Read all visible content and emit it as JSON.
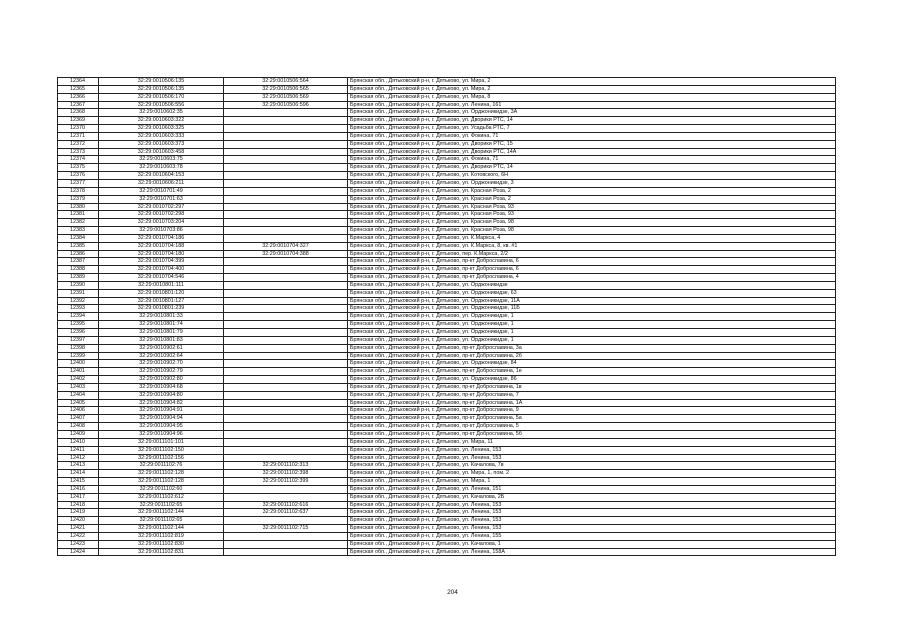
{
  "page_number": "204",
  "rows": [
    {
      "n": "12364",
      "k1": "32:29:0010506:135",
      "k2": "32:29:0010506:564",
      "addr": "Брянская обл., Дятьковский р-н, г. Дятьково, ул. Мира, 2"
    },
    {
      "n": "12365",
      "k1": "32:29:0010506:135",
      "k2": "32:29:0010506:565",
      "addr": "Брянская обл., Дятьковский р-н, г. Дятьково, ул. Мира, 2"
    },
    {
      "n": "12366",
      "k1": "32:29:0010506:170",
      "k2": "32:29:0010506:569",
      "addr": "Брянская обл., Дятьковский р-н, г. Дятьково, ул. Мира, 8"
    },
    {
      "n": "12367",
      "k1": "32:29:0010506:556",
      "k2": "32:29:0010506:596",
      "addr": "Брянская обл., Дятьковский р-н, г. Дятьково, ул. Ленина, 161"
    },
    {
      "n": "12368",
      "k1": "32:29:0010602:35",
      "k2": "",
      "addr": "Брянская обл., Дятьковский р-н, г. Дятьково, ул. Орджоникидзе, 3А"
    },
    {
      "n": "12369",
      "k1": "32:29:0010603:322",
      "k2": "",
      "addr": "Брянская обл., Дятьковский р-н, г. Дятьково, ул. Дворики РТС, 14"
    },
    {
      "n": "12370",
      "k1": "32:29:0010603:325",
      "k2": "",
      "addr": "Брянская обл., Дятьковский р-н, г. Дятьково, ул. Усадьба РТС, 7"
    },
    {
      "n": "12371",
      "k1": "32:29:0010603:333",
      "k2": "",
      "addr": "Брянская обл., Дятьковский р-н, г. Дятьково, ул. Фокина, 71"
    },
    {
      "n": "12372",
      "k1": "32:29:0010603:373",
      "k2": "",
      "addr": "Брянская обл., Дятьковский р-н, г. Дятьково, ул. Дворики РТС, 15"
    },
    {
      "n": "12373",
      "k1": "32:29:0010603:458",
      "k2": "",
      "addr": "Брянская обл., Дятьковский р-н, г. Дятьково, ул. Дворики РТС, 14А"
    },
    {
      "n": "12374",
      "k1": "32:29:0010603:75",
      "k2": "",
      "addr": "Брянская обл., Дятьковский р-н, г. Дятьково, ул. Фокина, 71"
    },
    {
      "n": "12375",
      "k1": "32:29:0010603:78",
      "k2": "",
      "addr": "Брянская обл., Дятьковский р-н, г. Дятьково, ул. Дворики РТС, 14"
    },
    {
      "n": "12376",
      "k1": "32:29:0010604:153",
      "k2": "",
      "addr": "Брянская обл., Дятьковский р-н, г. Дятьково, ул. Котовского, 6Н"
    },
    {
      "n": "12377",
      "k1": "32:29:0010606:211",
      "k2": "",
      "addr": "Брянская обл., Дятьковский р-н, г. Дятьково, ул. Орджоникидзе, 3"
    },
    {
      "n": "12378",
      "k1": "32:29:0010701:49",
      "k2": "",
      "addr": "Брянская обл., Дятьковский р-н, г. Дятьково, ул. Красная Роза, 2"
    },
    {
      "n": "12379",
      "k1": "32:29:0010701:63",
      "k2": "",
      "addr": "Брянская обл., Дятьковский р-н, г. Дятьково, ул. Красная Роза, 2"
    },
    {
      "n": "12380",
      "k1": "32:29:0010702:297",
      "k2": "",
      "addr": "Брянская обл., Дятьковский р-н, г. Дятьково, ул. Красная Роза, 93"
    },
    {
      "n": "12381",
      "k1": "32:29:0010702:298",
      "k2": "",
      "addr": "Брянская обл., Дятьковский р-н, г. Дятьково, ул. Красная Роза, 93"
    },
    {
      "n": "12382",
      "k1": "32:29:0010703:204",
      "k2": "",
      "addr": "Брянская обл., Дятьковский р-н, г. Дятьково, ул. Красная Роза, 98"
    },
    {
      "n": "12383",
      "k1": "32:29:0010703:86",
      "k2": "",
      "addr": "Брянская обл., Дятьковский р-н, г. Дятьково, ул. Красная Роза, 98"
    },
    {
      "n": "12384",
      "k1": "32:29:0010704:186",
      "k2": "",
      "addr": "Брянская обл., Дятьковский р-н, г. Дятьково, ул. К.Маркса, 4"
    },
    {
      "n": "12385",
      "k1": "32:29:0010704:188",
      "k2": "32:29:0010704:327",
      "addr": "Брянская обл., Дятьковский р-н, г. Дятьково, ул. К.Маркса, 8, кв. #1"
    },
    {
      "n": "12386",
      "k1": "32:29:0010704:180",
      "k2": "32:29:0010704:388",
      "addr": "Брянская обл., Дятьковский р-н, г. Дятьково, пер. К.Маркса, 2/2"
    },
    {
      "n": "12387",
      "k1": "32:29:0010704:399",
      "k2": "",
      "addr": "Брянская обл., Дятьковский р-н, г. Дятьково, пр-кт Доброславина, 6"
    },
    {
      "n": "12388",
      "k1": "32:29:0010704:400",
      "k2": "",
      "addr": "Брянская обл., Дятьковский р-н, г. Дятьково, пр-кт Доброславина, 6"
    },
    {
      "n": "12389",
      "k1": "32:29:0010704:546",
      "k2": "",
      "addr": "Брянская обл., Дятьковский р-н, г. Дятьково, пр-кт Доброславина, 4"
    },
    {
      "n": "12390",
      "k1": "32:29:0010801:111",
      "k2": "",
      "addr": "Брянская обл., Дятьковский р-н, г. Дятьково, ул. Орджоникидзе"
    },
    {
      "n": "12391",
      "k1": "32:29:0010801:120",
      "k2": "",
      "addr": "Брянская обл., Дятьковский р-н, г. Дятьково, ул. Орджоникидзе, 63"
    },
    {
      "n": "12392",
      "k1": "32:29:0010801:127",
      "k2": "",
      "addr": "Брянская обл., Дятьковский р-н, г. Дятьково, ул. Орджоникидзе, 11А"
    },
    {
      "n": "12393",
      "k1": "32:29:0010801:239",
      "k2": "",
      "addr": "Брянская обл., Дятьковский р-н, г. Дятьково, ул. Орджоникидзе, 11Б"
    },
    {
      "n": "12394",
      "k1": "32:29:0010801:33",
      "k2": "",
      "addr": "Брянская обл., Дятьковский р-н, г. Дятьково, ул. Орджоникидзе, 1"
    },
    {
      "n": "12395",
      "k1": "32:29:0010801:74",
      "k2": "",
      "addr": "Брянская обл., Дятьковский р-н, г. Дятьково, ул. Орджоникидзе, 1"
    },
    {
      "n": "12396",
      "k1": "32:29:0010801:79",
      "k2": "",
      "addr": "Брянская обл., Дятьковский р-н, г. Дятьково, ул. Орджоникидзе, 1"
    },
    {
      "n": "12397",
      "k1": "32:29:0010801:83",
      "k2": "",
      "addr": "Брянская обл., Дятьковский р-н, г. Дятьково, ул. Орджоникидзе, 1"
    },
    {
      "n": "12398",
      "k1": "32:29:0010902:61",
      "k2": "",
      "addr": "Брянская обл., Дятьковский р-н, г. Дятьково, пр-кт Доброславина, 3а"
    },
    {
      "n": "12399",
      "k1": "32:29:0010902:64",
      "k2": "",
      "addr": "Брянская обл., Дятьковский р-н, г. Дятьково, пр-кт Доброславина, 2б"
    },
    {
      "n": "12400",
      "k1": "32:29:0010902:70",
      "k2": "",
      "addr": "Брянская обл., Дятьковский р-н, г. Дятьково, ул. Орджоникидзе, 84"
    },
    {
      "n": "12401",
      "k1": "32:29:0010902:79",
      "k2": "",
      "addr": "Брянская обл., Дятьковский р-н, г. Дятьково, пр-кт Доброславина, 1е"
    },
    {
      "n": "12402",
      "k1": "32:29:0010902:80",
      "k2": "",
      "addr": "Брянская обл., Дятьковский р-н, г. Дятьково, ул. Орджоникидзе, 86"
    },
    {
      "n": "12403",
      "k1": "32:29:0010904:68",
      "k2": "",
      "addr": "Брянская обл., Дятьковский р-н, г. Дятьково, пр-кт Доброславина, 1в"
    },
    {
      "n": "12404",
      "k1": "32:29:0010904:80",
      "k2": "",
      "addr": "Брянская обл., Дятьковский р-н, г. Дятьково, пр-кт Доброславина, 7"
    },
    {
      "n": "12405",
      "k1": "32:29:0010904:82",
      "k2": "",
      "addr": "Брянская обл., Дятьковский р-н, г. Дятьково, пр-кт Доброславина, 1А"
    },
    {
      "n": "12406",
      "k1": "32:29:0010904:91",
      "k2": "",
      "addr": "Брянская обл., Дятьковский р-н, г. Дятьково, пр-кт Доброславина, 9"
    },
    {
      "n": "12407",
      "k1": "32:29:0010904:94",
      "k2": "",
      "addr": "Брянская обл., Дятьковский р-н, г. Дятьково, пр-кт Доброславина, 5а"
    },
    {
      "n": "12408",
      "k1": "32:29:0010904:95",
      "k2": "",
      "addr": "Брянская обл., Дятьковский р-н, г. Дятьково, пр-кт Доброславина, 5"
    },
    {
      "n": "12409",
      "k1": "32:29:0010904:96",
      "k2": "",
      "addr": "Брянская обл., Дятьковский р-н, г. Дятьково, пр-кт Доброславина, 5б"
    },
    {
      "n": "12410",
      "k1": "32:29:0011101:101",
      "k2": "",
      "addr": "Брянская обл., Дятьковский р-н, г. Дятьково, ул. Мира, 11"
    },
    {
      "n": "12411",
      "k1": "32:29:0011102:150",
      "k2": "",
      "addr": "Брянская обл., Дятьковский р-н, г. Дятьково, ул. Ленина, 153"
    },
    {
      "n": "12412",
      "k1": "32:29:0011102:156",
      "k2": "",
      "addr": "Брянская обл., Дятьковский р-н, г. Дятьково, ул. Ленина, 153"
    },
    {
      "n": "12413",
      "k1": "32:29:0011102:76",
      "k2": "32:29:0011102:313",
      "addr": "Брянская обл., Дятьковский р-н, г. Дятьково, ул. Качалова, 7в"
    },
    {
      "n": "12414",
      "k1": "32:29:0011102:128",
      "k2": "32:29:0011102:398",
      "addr": "Брянская обл., Дятьковский р-н, г. Дятьково, ул. Мира, 1, пом. 2"
    },
    {
      "n": "12415",
      "k1": "32:29:0011102:128",
      "k2": "32:29:0011102:399",
      "addr": "Брянская обл., Дятьковский р-н, г. Дятьково, ул. Мира, 1"
    },
    {
      "n": "12416",
      "k1": "32:29:0011102:60",
      "k2": "",
      "addr": "Брянская обл., Дятьковский р-н, г. Дятьково, ул. Ленина, 151"
    },
    {
      "n": "12417",
      "k1": "32:29:0011102:612",
      "k2": "",
      "addr": "Брянская обл., Дятьковский р-н, г. Дятьково, ул. Качалова, 2Б"
    },
    {
      "n": "12418",
      "k1": "32:29:0011102:65",
      "k2": "32:29:0011102:616",
      "addr": "Брянская обл., Дятьковский р-н, г. Дятьково, ул. Ленина, 153"
    },
    {
      "n": "12419",
      "k1": "32:29:0011102:144",
      "k2": "32:29:0011102:637",
      "addr": "Брянская обл., Дятьковский р-н, г. Дятьково, ул. Ленина, 153"
    },
    {
      "n": "12420",
      "k1": "32:29:0011102:65",
      "k2": "",
      "addr": "Брянская обл., Дятьковский р-н, г. Дятьково, ул. Ленина, 153"
    },
    {
      "n": "12421",
      "k1": "32:29:0011102:144",
      "k2": "32:29:0011102:715",
      "addr": "Брянская обл., Дятьковский р-н, г. Дятьково, ул. Ленина, 153"
    },
    {
      "n": "12422",
      "k1": "32:29:0011102:819",
      "k2": "",
      "addr": "Брянская обл., Дятьковский р-н, г. Дятьково, ул. Ленина, 155"
    },
    {
      "n": "12423",
      "k1": "32:29:0011102:830",
      "k2": "",
      "addr": "Брянская обл., Дятьковский р-н, г. Дятьково, ул. Качалова, 1"
    },
    {
      "n": "12424",
      "k1": "32:29:0011102:831",
      "k2": "",
      "addr": "Брянская обл., Дятьковский р-н, г. Дятьково, ул. Ленина, 158А"
    }
  ]
}
